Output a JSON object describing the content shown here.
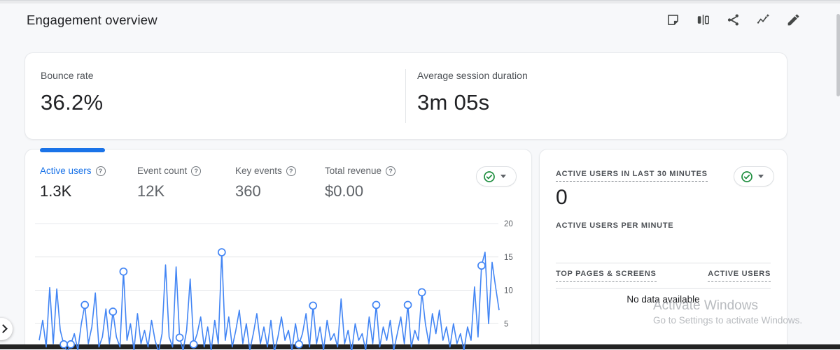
{
  "page": {
    "title": "Engagement overview"
  },
  "header": {
    "icons": [
      {
        "name": "note"
      },
      {
        "name": "comparison"
      },
      {
        "name": "share"
      },
      {
        "name": "insights"
      },
      {
        "name": "edit"
      }
    ]
  },
  "summary": {
    "bounce_rate_label": "Bounce rate",
    "bounce_rate_value": "36.2%",
    "avg_session_label": "Average session duration",
    "avg_session_value": "3m 05s"
  },
  "metrics": [
    {
      "label": "Active users",
      "value": "1.3K",
      "active": true
    },
    {
      "label": "Event count",
      "value": "12K",
      "active": false
    },
    {
      "label": "Key events",
      "value": "360",
      "active": false
    },
    {
      "label": "Total revenue",
      "value": "$0.00",
      "active": false
    }
  ],
  "realtime": {
    "title": "ACTIVE USERS IN LAST 30 MINUTES",
    "value": "0",
    "per_minute_label": "ACTIVE USERS PER MINUTE",
    "table": {
      "col_left": "TOP PAGES & SCREENS",
      "col_right": "ACTIVE USERS",
      "empty": "No data available"
    }
  },
  "watermark": {
    "line1": "Activate Windows",
    "line2": "Go to Settings to activate Windows."
  },
  "colors": {
    "accent_blue": "#1a73e8",
    "chart_line": "#4285f4",
    "check_green": "#1e8e3e",
    "grid_gray": "#e7e9ec",
    "tick_gray": "#5f6368"
  },
  "chart_data": {
    "type": "line",
    "series_name": "Active users",
    "note": "daily active users sparkline; x-axis date labels cropped out of view",
    "ylim": [
      0,
      21
    ],
    "yticks": [
      5,
      10,
      15,
      20
    ],
    "grid": true,
    "values": [
      2.5,
      5.5,
      1.5,
      10.4,
      2,
      10.2,
      4,
      1.9,
      0.8,
      1.9,
      3.5,
      1,
      5,
      7.8,
      2,
      4.5,
      9.6,
      1.5,
      3,
      7.2,
      2,
      6.8,
      3,
      1.5,
      12.8,
      2.5,
      5,
      1,
      6.5,
      2,
      4,
      1.5,
      5.5,
      2.5,
      0.8,
      3.5,
      13.8,
      3,
      1.5,
      13.5,
      2.9,
      1,
      4,
      11.7,
      1.9,
      3.5,
      6,
      1.5,
      4.5,
      1,
      5.5,
      2,
      15.7,
      2.5,
      6,
      1.5,
      4,
      7,
      2,
      5,
      1,
      3.5,
      6.5,
      2,
      4.5,
      1.5,
      5.5,
      0.8,
      3,
      6,
      2.5,
      4,
      1,
      5,
      1.9,
      3.5,
      6.5,
      1.5,
      7.7,
      2,
      4.5,
      1,
      5.5,
      2.5,
      3.5,
      1.5,
      8.7,
      2,
      4,
      0.8,
      5,
      2.5,
      3.5,
      1,
      6,
      2,
      7.8,
      1.5,
      4.5,
      2.5,
      5.5,
      1,
      3.5,
      6,
      2,
      7.8,
      1.5,
      4,
      2.5,
      9.7,
      5,
      2,
      6.5,
      3.5,
      7,
      2.5,
      4.5,
      1.5,
      5,
      2,
      3.5,
      1,
      4.5,
      2.5,
      10.5,
      3,
      13.7,
      15.7,
      5,
      14.2,
      10.5,
      7
    ],
    "marker_indices": [
      7,
      9,
      13,
      21,
      24,
      40,
      44,
      52,
      74,
      78,
      96,
      105,
      109,
      126
    ]
  }
}
